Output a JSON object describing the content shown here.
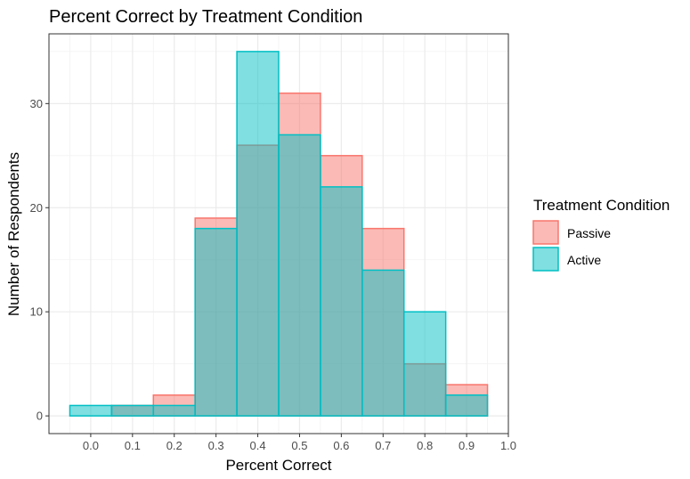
{
  "chart_data": {
    "type": "bar",
    "subtype": "overlapping-histogram",
    "title": "Percent Correct by Treatment Condition",
    "xlabel": "Percent Correct",
    "ylabel": "Number of Respondents",
    "xlim": [
      -0.1,
      1.0
    ],
    "ylim": [
      -1.7,
      36.7
    ],
    "x_ticks": [
      "0.0",
      "0.1",
      "0.2",
      "0.3",
      "0.4",
      "0.5",
      "0.6",
      "0.7",
      "0.8",
      "0.9",
      "1.0"
    ],
    "y_ticks": [
      "0",
      "10",
      "20",
      "30"
    ],
    "bin_width": 0.1,
    "bin_centers": [
      0.0,
      0.1,
      0.2,
      0.3,
      0.4,
      0.5,
      0.6,
      0.7,
      0.8,
      0.9
    ],
    "series": [
      {
        "name": "Passive",
        "values": [
          0,
          1,
          2,
          19,
          26,
          31,
          25,
          18,
          5,
          3
        ],
        "fill": "#F8766D",
        "stroke": "#F8766D"
      },
      {
        "name": "Active",
        "values": [
          1,
          1,
          1,
          18,
          35,
          27,
          22,
          14,
          10,
          2
        ],
        "fill": "#00BFC4",
        "stroke": "#00BFC4"
      }
    ],
    "fill_opacity": 0.5,
    "grid": true,
    "legend": {
      "title": "Treatment Condition",
      "position": "right"
    }
  }
}
